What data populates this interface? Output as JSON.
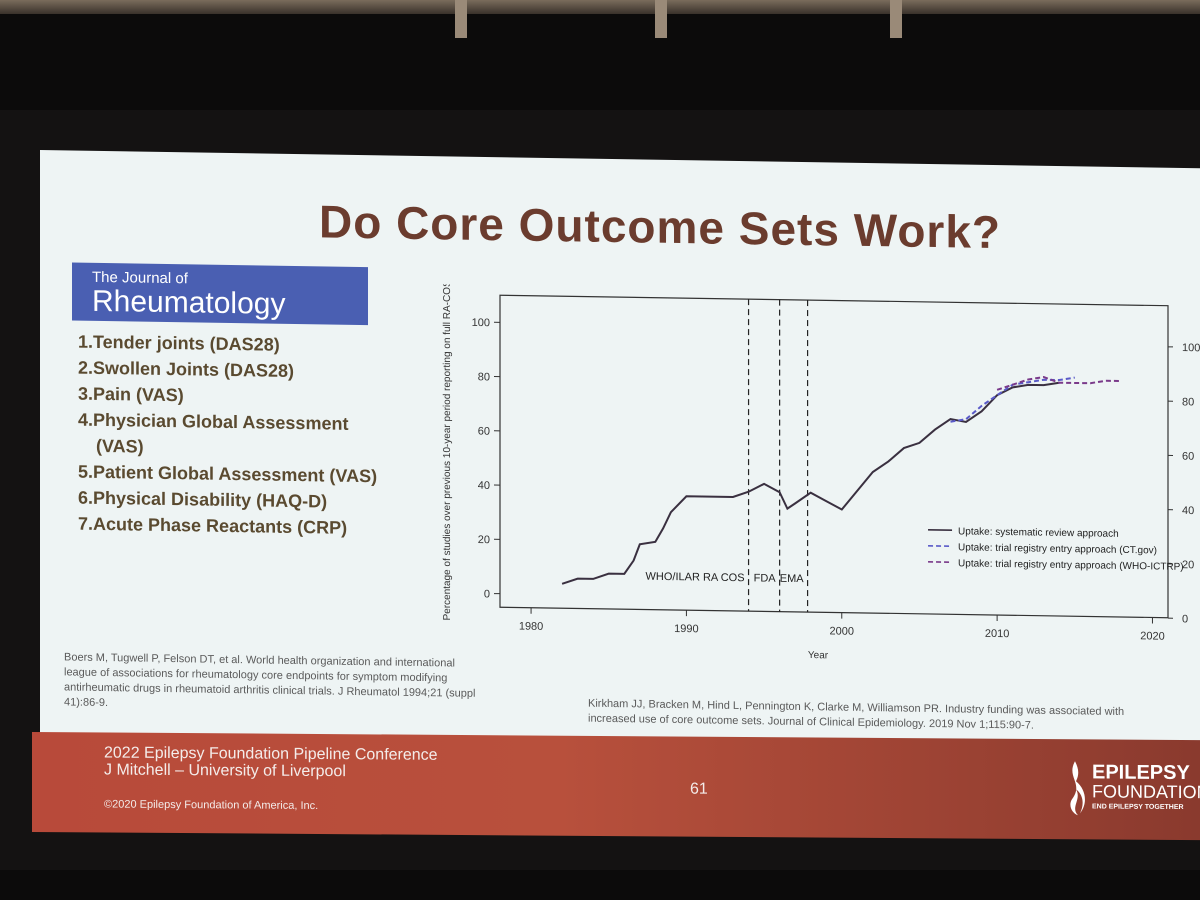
{
  "slide": {
    "title": "Do Core Outcome Sets Work?",
    "journal": {
      "line1": "The Journal of",
      "line2": "Rheumatology"
    },
    "endpoints": [
      "1.Tender joints (DAS28)",
      "2.Swollen Joints (DAS28)",
      "3.Pain (VAS)",
      "4.Physician Global Assessment",
      "(VAS)",
      "5.Patient Global Assessment (VAS)",
      "6.Physical Disability (HAQ-D)",
      "7.Acute Phase Reactants (CRP)"
    ],
    "reference_left": "Boers M, Tugwell P, Felson DT, et al. World health organization and international league of associations for rheumatology core endpoints for symptom modifying antirheumatic drugs in rheumatoid arthritis clinical trials. J Rheumatol 1994;21 (suppl 41):86-9.",
    "reference_right": "Kirkham JJ, Bracken M, Hind L, Pennington K, Clarke M, Williamson PR. Industry funding was associated with increased use of core outcome sets. Journal of Clinical Epidemiology. 2019 Nov 1;115:90-7."
  },
  "footer": {
    "conference": "2022 Epilepsy Foundation Pipeline Conference",
    "speaker": "J Mitchell – University of Liverpool",
    "page": "61",
    "copyright": "©2020 Epilepsy Foundation of America, Inc.",
    "logo_line1": "EPILEPSY",
    "logo_line2": "FOUNDATION",
    "logo_line3": "END EPILEPSY TOGETHER"
  },
  "chart_data": {
    "type": "line",
    "ylabel": "Percentage of studies over previous 10-year period reporting on full RA-COS",
    "xlabel": "Year",
    "xlim": [
      1978,
      2021
    ],
    "ylim": [
      -5,
      110
    ],
    "x_ticks": [
      "1980",
      "1990",
      "2000",
      "2010",
      "2020"
    ],
    "y_ticks": [
      "0",
      "20",
      "40",
      "60",
      "80",
      "100"
    ],
    "y2_ticks": [
      "0",
      "20",
      "40",
      "60",
      "80",
      "100"
    ],
    "vlines": [
      {
        "x": 1994,
        "label": "WHO/ILAR RA COS"
      },
      {
        "x": 1996,
        "label": "FDA"
      },
      {
        "x": 1997.8,
        "label": "EMA"
      }
    ],
    "series": [
      {
        "name": "Uptake: systematic review approach",
        "color": "#3a3040",
        "dash": false,
        "points": [
          [
            1982,
            4
          ],
          [
            1983,
            6
          ],
          [
            1984,
            6
          ],
          [
            1985,
            8
          ],
          [
            1986,
            8
          ],
          [
            1986.6,
            13
          ],
          [
            1987,
            19
          ],
          [
            1988,
            20
          ],
          [
            1988.5,
            25
          ],
          [
            1989,
            31
          ],
          [
            1990,
            37
          ],
          [
            1991,
            37
          ],
          [
            1992,
            37
          ],
          [
            1993,
            37
          ],
          [
            1994,
            39
          ],
          [
            1995,
            42
          ],
          [
            1996,
            39
          ],
          [
            1996.5,
            33
          ],
          [
            1997,
            35
          ],
          [
            1998,
            39
          ],
          [
            1999,
            36
          ],
          [
            2000,
            33
          ],
          [
            2001,
            40
          ],
          [
            2002,
            47
          ],
          [
            2003,
            51
          ],
          [
            2004,
            56
          ],
          [
            2005,
            58
          ],
          [
            2006,
            63
          ],
          [
            2007,
            67
          ],
          [
            2008,
            66
          ],
          [
            2009,
            70
          ],
          [
            2010,
            76
          ],
          [
            2011,
            79
          ],
          [
            2012,
            80
          ],
          [
            2013,
            80
          ],
          [
            2014,
            81
          ]
        ]
      },
      {
        "name": "Uptake: trial registry entry approach (CT.gov)",
        "color": "#5a5ac8",
        "dash": true,
        "points": [
          [
            2007,
            66
          ],
          [
            2008,
            67
          ],
          [
            2009,
            72
          ],
          [
            2010,
            76
          ],
          [
            2011,
            80
          ],
          [
            2012,
            81
          ],
          [
            2013,
            82
          ],
          [
            2014,
            82
          ],
          [
            2015,
            83
          ]
        ]
      },
      {
        "name": "Uptake: trial registry entry approach (WHO-ICTRP)",
        "color": "#7a3a8a",
        "dash": true,
        "points": [
          [
            2010,
            78
          ],
          [
            2011,
            80
          ],
          [
            2012,
            82
          ],
          [
            2013,
            83
          ],
          [
            2014,
            81
          ],
          [
            2015,
            81
          ],
          [
            2016,
            81
          ],
          [
            2017,
            82
          ],
          [
            2018,
            82
          ]
        ]
      }
    ]
  }
}
